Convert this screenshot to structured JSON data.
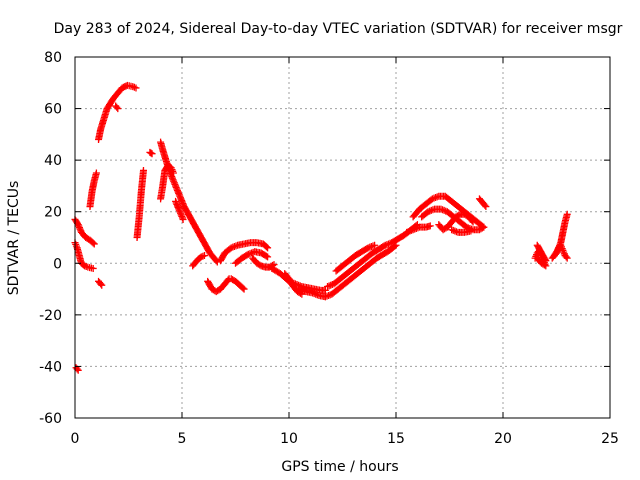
{
  "chart_data": {
    "type": "scatter",
    "title": "Day 283 of 2024, Sidereal Day-to-day VTEC variation (SDTVAR) for receiver msgr",
    "xlabel": "GPS time / hours",
    "ylabel": "SDTVAR / TECUs",
    "xlim": [
      0,
      25
    ],
    "ylim": [
      -60,
      80
    ],
    "xticks": [
      0,
      5,
      10,
      15,
      20,
      25
    ],
    "yticks": [
      -60,
      -40,
      -20,
      0,
      20,
      40,
      60,
      80
    ],
    "grid": true,
    "marker": "+",
    "color": "#ff0000",
    "series": [
      {
        "name": "SDTVAR",
        "tracks": [
          [
            [
              0.05,
              -40.5
            ],
            [
              0.15,
              -41.5
            ]
          ],
          [
            [
              0.0,
              17
            ],
            [
              0.15,
              15
            ],
            [
              0.3,
              12
            ],
            [
              0.5,
              10
            ],
            [
              0.7,
              9
            ],
            [
              0.9,
              7.5
            ]
          ],
          [
            [
              0.0,
              8
            ],
            [
              0.1,
              6
            ],
            [
              0.2,
              3
            ],
            [
              0.3,
              0
            ],
            [
              0.45,
              -1
            ],
            [
              0.6,
              -1.5
            ],
            [
              0.85,
              -2
            ]
          ],
          [
            [
              0.7,
              22
            ],
            [
              0.8,
              28
            ],
            [
              0.9,
              32
            ],
            [
              1.0,
              35
            ]
          ],
          [
            [
              1.1,
              -7
            ],
            [
              1.25,
              -8.5
            ]
          ],
          [
            [
              1.1,
              48
            ],
            [
              1.2,
              52
            ],
            [
              1.35,
              56
            ],
            [
              1.5,
              60
            ],
            [
              1.65,
              62
            ],
            [
              1.8,
              64
            ],
            [
              2.0,
              66
            ],
            [
              2.2,
              68
            ],
            [
              2.45,
              69
            ],
            [
              2.7,
              68.5
            ],
            [
              2.85,
              68
            ]
          ],
          [
            [
              1.9,
              61
            ],
            [
              2.0,
              60
            ]
          ],
          [
            [
              2.9,
              10
            ],
            [
              3.0,
              18
            ],
            [
              3.1,
              28
            ],
            [
              3.2,
              36
            ]
          ],
          [
            [
              3.5,
              43
            ],
            [
              3.6,
              42.5
            ]
          ],
          [
            [
              4.0,
              47
            ],
            [
              4.1,
              44
            ],
            [
              4.25,
              40
            ],
            [
              4.4,
              36
            ],
            [
              4.55,
              33
            ],
            [
              4.7,
              30
            ],
            [
              4.9,
              26
            ],
            [
              5.1,
              22
            ],
            [
              5.3,
              19
            ],
            [
              5.5,
              16
            ],
            [
              5.7,
              13
            ],
            [
              5.9,
              10
            ],
            [
              6.1,
              7
            ],
            [
              6.3,
              4
            ],
            [
              6.5,
              2
            ],
            [
              6.65,
              0.5
            ]
          ],
          [
            [
              4.0,
              25
            ],
            [
              4.1,
              30
            ],
            [
              4.2,
              36
            ],
            [
              4.35,
              38
            ],
            [
              4.5,
              37
            ],
            [
              4.6,
              35
            ]
          ],
          [
            [
              4.7,
              24
            ],
            [
              4.9,
              20
            ],
            [
              5.05,
              17
            ]
          ],
          [
            [
              5.5,
              -1
            ],
            [
              5.6,
              0
            ],
            [
              5.75,
              1.5
            ],
            [
              5.9,
              2.5
            ],
            [
              6.05,
              3
            ]
          ],
          [
            [
              6.2,
              -7
            ],
            [
              6.4,
              -10
            ],
            [
              6.6,
              -11
            ],
            [
              6.8,
              -10
            ],
            [
              7.0,
              -8
            ],
            [
              7.2,
              -6
            ]
          ],
          [
            [
              7.3,
              -6
            ],
            [
              7.5,
              -7
            ],
            [
              7.7,
              -8.5
            ],
            [
              7.9,
              -10
            ]
          ],
          [
            [
              6.8,
              1
            ],
            [
              7.0,
              4
            ],
            [
              7.3,
              6
            ],
            [
              7.6,
              7
            ],
            [
              7.9,
              7.5
            ],
            [
              8.2,
              8
            ],
            [
              8.5,
              8
            ],
            [
              8.8,
              7.5
            ],
            [
              9.0,
              6
            ]
          ],
          [
            [
              7.5,
              0
            ],
            [
              7.8,
              2
            ],
            [
              8.1,
              3.5
            ],
            [
              8.4,
              4.5
            ],
            [
              8.7,
              4
            ],
            [
              9.0,
              2.5
            ]
          ],
          [
            [
              8.3,
              2
            ],
            [
              8.5,
              0
            ],
            [
              8.7,
              -1
            ],
            [
              8.9,
              -1.5
            ],
            [
              9.1,
              -1.5
            ],
            [
              9.3,
              -0.5
            ]
          ],
          [
            [
              9.2,
              -2
            ],
            [
              9.4,
              -3
            ],
            [
              9.6,
              -4
            ],
            [
              9.8,
              -5.5
            ],
            [
              10.0,
              -7
            ],
            [
              10.3,
              -8
            ],
            [
              10.6,
              -9
            ],
            [
              10.9,
              -9.5
            ],
            [
              11.2,
              -10
            ],
            [
              11.5,
              -10.5
            ],
            [
              11.7,
              -10.5
            ]
          ],
          [
            [
              9.8,
              -4
            ],
            [
              10.0,
              -6
            ],
            [
              10.2,
              -9
            ],
            [
              10.4,
              -11
            ],
            [
              10.6,
              -12
            ]
          ],
          [
            [
              10.5,
              -10
            ],
            [
              10.8,
              -11
            ],
            [
              11.1,
              -11.5
            ],
            [
              11.4,
              -12.5
            ],
            [
              11.7,
              -13
            ]
          ],
          [
            [
              11.7,
              -13
            ],
            [
              12.0,
              -12
            ],
            [
              12.3,
              -10
            ],
            [
              12.6,
              -8
            ],
            [
              12.9,
              -6
            ],
            [
              13.2,
              -4
            ],
            [
              13.5,
              -2
            ],
            [
              13.8,
              0
            ],
            [
              14.1,
              2
            ],
            [
              14.4,
              3.5
            ],
            [
              14.7,
              5
            ],
            [
              15.0,
              7
            ]
          ],
          [
            [
              11.8,
              -9
            ],
            [
              12.1,
              -8
            ],
            [
              12.4,
              -6
            ],
            [
              12.7,
              -4
            ],
            [
              13.0,
              -2
            ],
            [
              13.3,
              0
            ],
            [
              13.6,
              2
            ],
            [
              13.9,
              4
            ],
            [
              14.2,
              5.5
            ],
            [
              14.5,
              7
            ],
            [
              14.8,
              8
            ],
            [
              15.1,
              9.5
            ],
            [
              15.4,
              11
            ],
            [
              15.7,
              13
            ],
            [
              16.0,
              15
            ]
          ],
          [
            [
              12.2,
              -3
            ],
            [
              12.5,
              -1
            ],
            [
              12.8,
              1
            ],
            [
              13.1,
              3
            ],
            [
              13.4,
              4.5
            ],
            [
              13.7,
              6
            ],
            [
              14.0,
              7
            ]
          ],
          [
            [
              15.8,
              18
            ],
            [
              16.1,
              21
            ],
            [
              16.4,
              23
            ],
            [
              16.7,
              25
            ],
            [
              17.0,
              26
            ],
            [
              17.3,
              26
            ],
            [
              17.6,
              24
            ],
            [
              17.9,
              22
            ],
            [
              18.2,
              20
            ],
            [
              18.5,
              18
            ],
            [
              18.8,
              16
            ],
            [
              19.1,
              14
            ]
          ],
          [
            [
              15.5,
              12
            ],
            [
              15.8,
              13
            ],
            [
              16.1,
              14
            ],
            [
              16.4,
              14
            ],
            [
              16.6,
              14.5
            ]
          ],
          [
            [
              16.2,
              18
            ],
            [
              16.5,
              20
            ],
            [
              16.8,
              21
            ],
            [
              17.1,
              21
            ],
            [
              17.4,
              20
            ],
            [
              17.7,
              18
            ],
            [
              18.0,
              16
            ],
            [
              18.3,
              14
            ],
            [
              18.6,
              13
            ],
            [
              18.9,
              13
            ],
            [
              19.1,
              14
            ]
          ],
          [
            [
              17.0,
              15
            ],
            [
              17.2,
              13
            ],
            [
              17.4,
              14
            ],
            [
              17.6,
              16
            ],
            [
              17.8,
              18
            ],
            [
              18.0,
              19
            ],
            [
              18.2,
              19
            ],
            [
              18.4,
              18
            ],
            [
              18.6,
              16
            ]
          ],
          [
            [
              17.6,
              13
            ],
            [
              17.9,
              12
            ],
            [
              18.2,
              12
            ],
            [
              18.5,
              12.5
            ]
          ],
          [
            [
              18.9,
              25
            ],
            [
              19.0,
              24
            ],
            [
              19.2,
              22
            ]
          ],
          [
            [
              21.5,
              2
            ],
            [
              21.6,
              4
            ],
            [
              21.7,
              5
            ],
            [
              21.8,
              3
            ],
            [
              21.9,
              1
            ],
            [
              22.0,
              -1
            ],
            [
              21.8,
              0
            ],
            [
              21.6,
              2
            ]
          ],
          [
            [
              21.6,
              7
            ],
            [
              21.7,
              5.5
            ],
            [
              21.8,
              4
            ],
            [
              21.9,
              2.5
            ],
            [
              22.0,
              1
            ]
          ],
          [
            [
              22.3,
              2
            ],
            [
              22.5,
              4
            ],
            [
              22.6,
              6
            ],
            [
              22.7,
              7
            ],
            [
              22.8,
              5
            ],
            [
              22.9,
              3
            ],
            [
              23.0,
              2
            ]
          ],
          [
            [
              22.4,
              3
            ],
            [
              22.55,
              5
            ],
            [
              22.7,
              8
            ],
            [
              22.8,
              12
            ],
            [
              22.9,
              16
            ],
            [
              23.0,
              19
            ]
          ]
        ]
      }
    ]
  }
}
